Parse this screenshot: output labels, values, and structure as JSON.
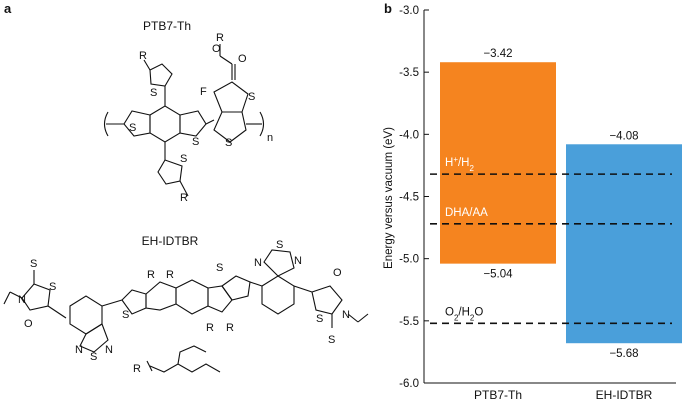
{
  "panel_a": {
    "letter": "a",
    "molecule1": {
      "name": "PTB7-Th",
      "atoms": {
        "R": "R",
        "O": "O",
        "F": "F",
        "S": "S",
        "n": "n"
      }
    },
    "molecule2": {
      "name": "EH-IDTBR",
      "atoms": {
        "R": "R",
        "S": "S",
        "N": "N",
        "O": "O"
      }
    }
  },
  "panel_b": {
    "letter": "b"
  },
  "chart_data": {
    "type": "bar",
    "subtype": "floating-bar (energy levels)",
    "ylabel": "Energy versus vacuum (eV)",
    "ylim": [
      -6.0,
      -3.0
    ],
    "yticks": [
      "-3.0",
      "-3.5",
      "-4.0",
      "-4.5",
      "-5.0",
      "-5.5",
      "-6.0"
    ],
    "categories": [
      "PTB7-Th",
      "EH-IDTBR"
    ],
    "bars": [
      {
        "category": "PTB7-Th",
        "top": -3.42,
        "bottom": -5.04,
        "top_label": "−3.42",
        "bottom_label": "−5.04",
        "color": "#F5841F"
      },
      {
        "category": "EH-IDTBR",
        "top": -4.08,
        "bottom": -5.68,
        "top_label": "−4.08",
        "bottom_label": "−5.68",
        "color": "#4A9FDA"
      }
    ],
    "reference_lines": [
      {
        "label_main": "H",
        "label_sup": "+",
        "label_mid": "/H",
        "label_sub": "2",
        "value": -4.32
      },
      {
        "label_main": "DHA/AA",
        "value": -4.72
      },
      {
        "label_main": "O",
        "label_sub": "2",
        "label_mid": "/H",
        "label_sub2": "2",
        "label_end": "O",
        "value": -5.52
      }
    ],
    "grid": false,
    "legend": "none"
  }
}
